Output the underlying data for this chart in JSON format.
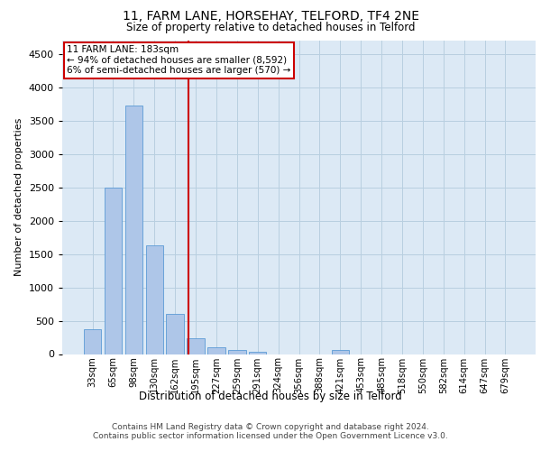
{
  "title1": "11, FARM LANE, HORSEHAY, TELFORD, TF4 2NE",
  "title2": "Size of property relative to detached houses in Telford",
  "xlabel": "Distribution of detached houses by size in Telford",
  "ylabel": "Number of detached properties",
  "categories": [
    "33sqm",
    "65sqm",
    "98sqm",
    "130sqm",
    "162sqm",
    "195sqm",
    "227sqm",
    "259sqm",
    "291sqm",
    "324sqm",
    "356sqm",
    "388sqm",
    "421sqm",
    "453sqm",
    "485sqm",
    "518sqm",
    "550sqm",
    "582sqm",
    "614sqm",
    "647sqm",
    "679sqm"
  ],
  "values": [
    370,
    2500,
    3720,
    1630,
    600,
    230,
    105,
    60,
    35,
    0,
    0,
    0,
    55,
    0,
    0,
    0,
    0,
    0,
    0,
    0,
    0
  ],
  "bar_color": "#aec6e8",
  "bar_edge_color": "#5b9bd5",
  "vline_color": "#cc0000",
  "annotation_text": "11 FARM LANE: 183sqm\n← 94% of detached houses are smaller (8,592)\n6% of semi-detached houses are larger (570) →",
  "annotation_box_color": "#ffffff",
  "annotation_box_edge": "#cc0000",
  "ylim": [
    0,
    4700
  ],
  "yticks": [
    0,
    500,
    1000,
    1500,
    2000,
    2500,
    3000,
    3500,
    4000,
    4500
  ],
  "background_color": "#dce9f5",
  "footer": "Contains HM Land Registry data © Crown copyright and database right 2024.\nContains public sector information licensed under the Open Government Licence v3.0."
}
